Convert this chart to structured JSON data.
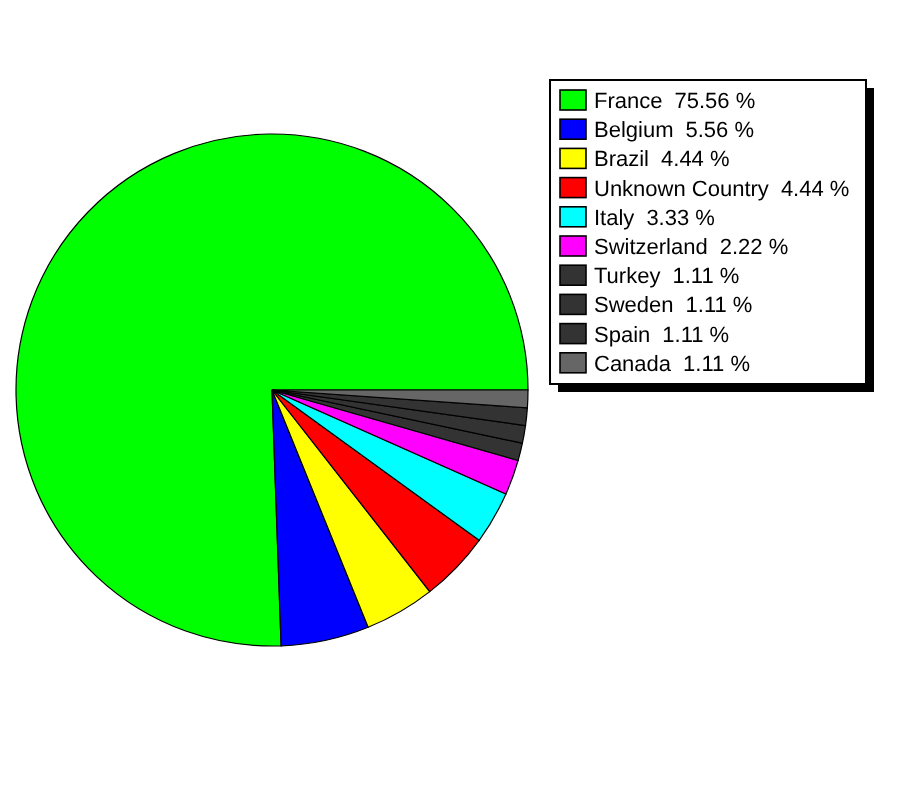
{
  "chart_data": {
    "type": "pie",
    "categories": [
      "France",
      "Belgium",
      "Brazil",
      "Unknown Country",
      "Italy",
      "Switzerland",
      "Turkey",
      "Sweden",
      "Spain",
      "Canada"
    ],
    "values": [
      75.56,
      5.56,
      4.44,
      4.44,
      3.33,
      2.22,
      1.11,
      1.11,
      1.11,
      1.11
    ],
    "colors": [
      "#00ff00",
      "#0000ff",
      "#ffff00",
      "#ff0000",
      "#00ffff",
      "#ff00ff",
      "#333333",
      "#333333",
      "#333333",
      "#666666"
    ],
    "value_labels": [
      "75.56 %",
      "5.56 %",
      "4.44 %",
      "4.44 %",
      "3.33 %",
      "2.22 %",
      "1.11 %",
      "1.11 %",
      "1.11 %",
      "1.11 %"
    ],
    "legend": "right"
  }
}
